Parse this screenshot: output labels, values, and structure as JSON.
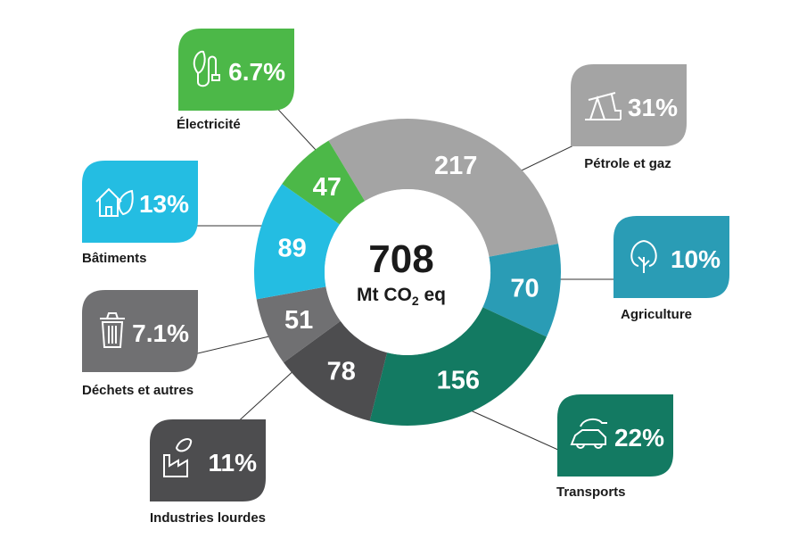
{
  "chart_data": {
    "type": "pie",
    "title": "",
    "center_total": "708",
    "center_unit_prefix": "Mt CO",
    "center_unit_sub": "2",
    "center_unit_suffix": " eq",
    "slices": [
      {
        "label": "Pétrole et gaz",
        "value": 217,
        "value_label": "217",
        "percent": "31%",
        "color": "#a4a4a4",
        "icon": "oil-pump-icon"
      },
      {
        "label": "Agriculture",
        "value": 70,
        "value_label": "70",
        "percent": "10%",
        "color": "#2a9cb5",
        "icon": "tree-icon"
      },
      {
        "label": "Transports",
        "value": 156,
        "value_label": "156",
        "percent": "22%",
        "color": "#137a62",
        "icon": "electric-car-icon"
      },
      {
        "label": "Industries lourdes",
        "value": 78,
        "value_label": "78",
        "percent": "11%",
        "color": "#4d4d4f",
        "icon": "factory-leaf-icon"
      },
      {
        "label": "Déchets et autres",
        "value": 51,
        "value_label": "51",
        "percent": "7.1%",
        "color": "#707072",
        "icon": "trash-can-icon"
      },
      {
        "label": "Bâtiments",
        "value": 89,
        "value_label": "89",
        "percent": "13%",
        "color": "#24bde2",
        "icon": "house-leaf-icon"
      },
      {
        "label": "Électricité",
        "value": 47,
        "value_label": "47",
        "percent": "6.7%",
        "color": "#4cb848",
        "icon": "leaf-plug-icon"
      }
    ]
  }
}
